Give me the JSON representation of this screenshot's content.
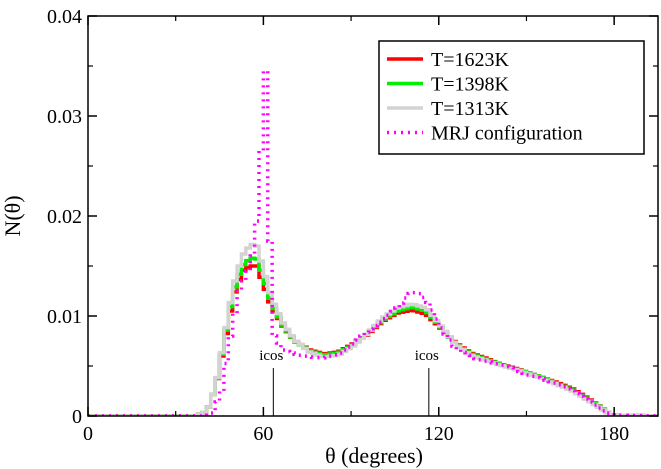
{
  "chart_data": {
    "type": "line",
    "xlabel": "θ (degrees)",
    "ylabel": "N(θ)",
    "xlim": [
      0,
      195
    ],
    "ylim": [
      0,
      0.04
    ],
    "x_ticks": [
      0,
      60,
      120,
      180
    ],
    "x_tick_labels": [
      "0",
      "60",
      "120",
      "180"
    ],
    "y_ticks": [
      0,
      0.01,
      0.02,
      0.03,
      0.04
    ],
    "y_tick_labels": [
      "0",
      "0.01",
      "0.02",
      "0.03",
      "0.04"
    ],
    "grid": false,
    "legend_position": "top-right",
    "series": [
      {
        "name": "T=1623K",
        "color": "#ff0000",
        "style": "solid",
        "points": [
          [
            0,
            0
          ],
          [
            36,
            0
          ],
          [
            40,
            0.0005
          ],
          [
            43,
            0.003
          ],
          [
            46,
            0.0075
          ],
          [
            49,
            0.012
          ],
          [
            52,
            0.0145
          ],
          [
            55,
            0.015
          ],
          [
            57,
            0.015
          ],
          [
            59,
            0.0135
          ],
          [
            62,
            0.011
          ],
          [
            66,
            0.009
          ],
          [
            70,
            0.0075
          ],
          [
            75,
            0.0066
          ],
          [
            80,
            0.0062
          ],
          [
            85,
            0.0064
          ],
          [
            90,
            0.0072
          ],
          [
            95,
            0.0082
          ],
          [
            100,
            0.0095
          ],
          [
            105,
            0.0103
          ],
          [
            110,
            0.0106
          ],
          [
            115,
            0.0102
          ],
          [
            120,
            0.0088
          ],
          [
            125,
            0.0073
          ],
          [
            130,
            0.0063
          ],
          [
            135,
            0.0058
          ],
          [
            140,
            0.0052
          ],
          [
            145,
            0.0048
          ],
          [
            150,
            0.0043
          ],
          [
            155,
            0.0038
          ],
          [
            160,
            0.0033
          ],
          [
            165,
            0.0027
          ],
          [
            170,
            0.0018
          ],
          [
            175,
            0.0008
          ],
          [
            178,
            0.0001
          ],
          [
            195,
            0
          ]
        ]
      },
      {
        "name": "T=1398K",
        "color": "#00ee00",
        "style": "solid",
        "points": [
          [
            0,
            0
          ],
          [
            36,
            0
          ],
          [
            40,
            0.0005
          ],
          [
            43,
            0.003
          ],
          [
            46,
            0.0078
          ],
          [
            49,
            0.0125
          ],
          [
            52,
            0.015
          ],
          [
            55,
            0.0158
          ],
          [
            57,
            0.0157
          ],
          [
            59,
            0.0142
          ],
          [
            62,
            0.0113
          ],
          [
            66,
            0.0091
          ],
          [
            70,
            0.0075
          ],
          [
            75,
            0.0065
          ],
          [
            80,
            0.0061
          ],
          [
            85,
            0.0063
          ],
          [
            90,
            0.0071
          ],
          [
            95,
            0.0083
          ],
          [
            100,
            0.0096
          ],
          [
            105,
            0.0105
          ],
          [
            110,
            0.0109
          ],
          [
            115,
            0.0105
          ],
          [
            120,
            0.0089
          ],
          [
            125,
            0.0072
          ],
          [
            130,
            0.0062
          ],
          [
            135,
            0.0057
          ],
          [
            140,
            0.0052
          ],
          [
            145,
            0.0047
          ],
          [
            150,
            0.0043
          ],
          [
            155,
            0.0038
          ],
          [
            160,
            0.0032
          ],
          [
            165,
            0.0026
          ],
          [
            170,
            0.0017
          ],
          [
            175,
            0.0008
          ],
          [
            178,
            0.0001
          ],
          [
            195,
            0
          ]
        ]
      },
      {
        "name": "T=1313K",
        "color": "#d3d3d3",
        "style": "solid",
        "points": [
          [
            0,
            0
          ],
          [
            36,
            0
          ],
          [
            40,
            0.0005
          ],
          [
            43,
            0.003
          ],
          [
            46,
            0.008
          ],
          [
            49,
            0.013
          ],
          [
            52,
            0.016
          ],
          [
            55,
            0.0172
          ],
          [
            57,
            0.017
          ],
          [
            59,
            0.015
          ],
          [
            62,
            0.0118
          ],
          [
            66,
            0.0093
          ],
          [
            70,
            0.0076
          ],
          [
            75,
            0.0064
          ],
          [
            80,
            0.0059
          ],
          [
            85,
            0.0061
          ],
          [
            90,
            0.007
          ],
          [
            95,
            0.0083
          ],
          [
            100,
            0.0098
          ],
          [
            105,
            0.0108
          ],
          [
            110,
            0.0112
          ],
          [
            115,
            0.0108
          ],
          [
            120,
            0.009
          ],
          [
            125,
            0.0072
          ],
          [
            130,
            0.0061
          ],
          [
            135,
            0.0056
          ],
          [
            140,
            0.0051
          ],
          [
            145,
            0.0047
          ],
          [
            150,
            0.0042
          ],
          [
            155,
            0.0037
          ],
          [
            160,
            0.0031
          ],
          [
            165,
            0.0025
          ],
          [
            170,
            0.0016
          ],
          [
            175,
            0.0007
          ],
          [
            178,
            0.0001
          ],
          [
            195,
            0
          ]
        ]
      },
      {
        "name": "MRJ configuration",
        "color": "#ff00ff",
        "style": "dotted",
        "points": [
          [
            0,
            0
          ],
          [
            40,
            0
          ],
          [
            42,
            0.0003
          ],
          [
            45,
            0.0025
          ],
          [
            48,
            0.008
          ],
          [
            51,
            0.0125
          ],
          [
            54,
            0.0145
          ],
          [
            56,
            0.0165
          ],
          [
            58,
            0.0225
          ],
          [
            59.5,
            0.0345
          ],
          [
            60.5,
            0.0345
          ],
          [
            61.5,
            0.0175
          ],
          [
            63,
            0.008
          ],
          [
            66,
            0.0066
          ],
          [
            70,
            0.0062
          ],
          [
            75,
            0.0059
          ],
          [
            80,
            0.0058
          ],
          [
            85,
            0.0062
          ],
          [
            90,
            0.0072
          ],
          [
            95,
            0.0085
          ],
          [
            100,
            0.0096
          ],
          [
            105,
            0.0108
          ],
          [
            108,
            0.0118
          ],
          [
            110,
            0.0124
          ],
          [
            113,
            0.0122
          ],
          [
            116,
            0.0112
          ],
          [
            120,
            0.0088
          ],
          [
            125,
            0.0068
          ],
          [
            130,
            0.0059
          ],
          [
            135,
            0.0055
          ],
          [
            140,
            0.0052
          ],
          [
            145,
            0.0047
          ],
          [
            150,
            0.0041
          ],
          [
            155,
            0.0037
          ],
          [
            160,
            0.0032
          ],
          [
            165,
            0.0025
          ],
          [
            170,
            0.0016
          ],
          [
            175,
            0.0006
          ],
          [
            178,
            0.0001
          ],
          [
            195,
            0
          ]
        ]
      }
    ],
    "annotations": [
      {
        "text": "icos",
        "x": 63.4,
        "y_top": 0.0048,
        "y_bottom": 0
      },
      {
        "text": "icos",
        "x": 116.6,
        "y_top": 0.0048,
        "y_bottom": 0
      }
    ]
  }
}
